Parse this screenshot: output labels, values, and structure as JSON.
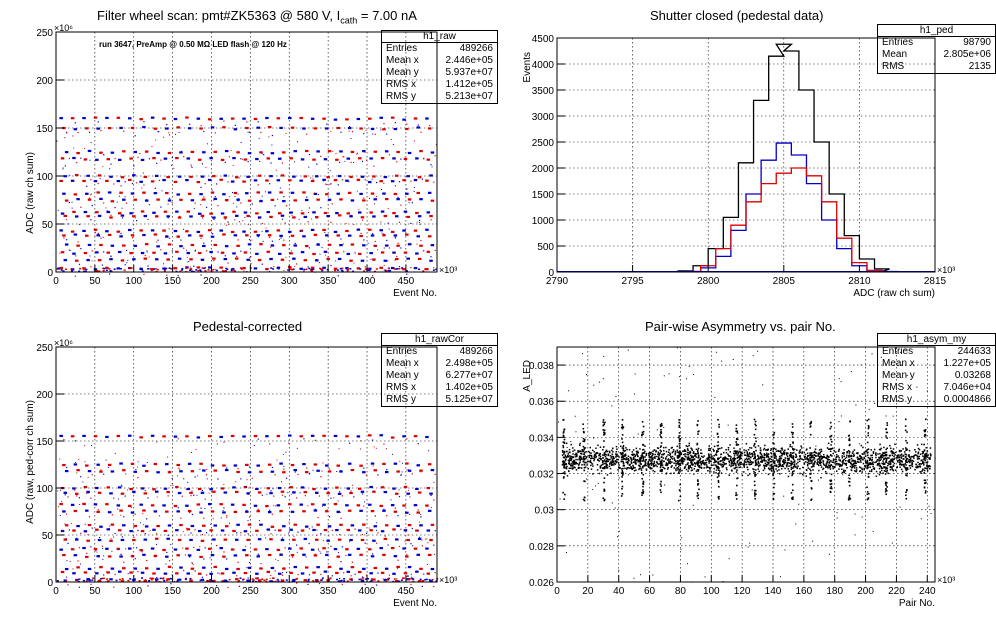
{
  "panels": [
    {
      "title_main": "Filter wheel scan: pmt#ZK5363 @   580 V, I",
      "title_sub": "cath",
      "title_tail": " = 7.00 nA",
      "annotation": "run 3647, PreAmp @ 0.50 MΩ LED flash @  120 Hz",
      "stats": {
        "name": "h1_raw",
        "rows": [
          {
            "label": "Entries",
            "value": "489266"
          },
          {
            "label": "Mean x",
            "value": "2.446e+05"
          },
          {
            "label": "Mean y",
            "value": "5.937e+07"
          },
          {
            "label": "RMS x",
            "value": "1.412e+05"
          },
          {
            "label": "RMS y",
            "value": "5.213e+07"
          }
        ]
      }
    },
    {
      "title": "Shutter closed (pedestal data)",
      "stats": {
        "name": "h1_ped",
        "rows": [
          {
            "label": "Entries",
            "value": "98790"
          },
          {
            "label": "Mean",
            "value": "2.805e+06"
          },
          {
            "label": "RMS",
            "value": "2135"
          }
        ]
      }
    },
    {
      "title": "Pedestal-corrected",
      "stats": {
        "name": "h1_rawCor",
        "rows": [
          {
            "label": "Entries",
            "value": "489266"
          },
          {
            "label": "Mean x",
            "value": "2.498e+05"
          },
          {
            "label": "Mean y",
            "value": "6.277e+07"
          },
          {
            "label": "RMS x",
            "value": "1.402e+05"
          },
          {
            "label": "RMS y",
            "value": "5.125e+07"
          }
        ]
      }
    },
    {
      "title": "Pair-wise Asymmetry vs. pair No.",
      "stats": {
        "name": "h1_asym_my",
        "rows": [
          {
            "label": "Entries",
            "value": "244633"
          },
          {
            "label": "Mean x",
            "value": "1.227e+05"
          },
          {
            "label": "Mean y",
            "value": "0.03268"
          },
          {
            "label": "RMS x",
            "value": "7.046e+04"
          },
          {
            "label": "RMS y",
            "value": "0.0004866"
          }
        ]
      }
    }
  ],
  "chart_data": [
    {
      "type": "scatter",
      "title": "Filter wheel scan: pmt#ZK5363 @ 580 V, I_cath = 7.00 nA",
      "xlabel": "Event No.",
      "ylabel": "ADC (raw ch sum)",
      "x_exponent": "×10³",
      "y_exponent": "×10⁶",
      "xlim": [
        0,
        490
      ],
      "ylim": [
        0,
        250
      ],
      "xticks": [
        0,
        50,
        100,
        150,
        200,
        250,
        300,
        350,
        400,
        450
      ],
      "yticks": [
        0,
        50,
        100,
        150,
        200,
        250
      ],
      "grid": true,
      "series_colors": [
        "#0000cc",
        "#dd0000"
      ],
      "levels": [
        160,
        150,
        125,
        118,
        100,
        95,
        82,
        75,
        62,
        58,
        43,
        38,
        28,
        20,
        13,
        4
      ]
    },
    {
      "type": "line",
      "title": "Shutter closed (pedestal data)",
      "xlabel": "ADC (raw ch sum)",
      "ylabel": "Events",
      "x_exponent": "×10³",
      "xlim": [
        2790,
        2815
      ],
      "ylim": [
        0,
        4500
      ],
      "xticks": [
        2790,
        2795,
        2800,
        2805,
        2810,
        2815
      ],
      "yticks": [
        0,
        500,
        1000,
        1500,
        2000,
        2500,
        3000,
        3500,
        4000,
        4500
      ],
      "grid": true,
      "series": [
        {
          "color": "#000000",
          "x": [
            2798.5,
            2799.5,
            2800.5,
            2801.5,
            2802.5,
            2803.5,
            2804.5,
            2805.0,
            2805.5,
            2806.5,
            2807.5,
            2808.5,
            2809.5,
            2810.5,
            2811.5,
            2812.0
          ],
          "values": [
            20,
            120,
            450,
            1050,
            2100,
            3300,
            4150,
            4380,
            4250,
            3500,
            2500,
            1500,
            700,
            250,
            60,
            10
          ]
        },
        {
          "color": "#0000cc",
          "x": [
            2799.0,
            2800.0,
            2801.0,
            2802.0,
            2803.0,
            2804.0,
            2805.0,
            2806.0,
            2807.0,
            2808.0,
            2809.0,
            2810.0,
            2811.0
          ],
          "values": [
            10,
            80,
            300,
            800,
            1500,
            2150,
            2480,
            2250,
            1700,
            1000,
            450,
            120,
            20
          ]
        },
        {
          "color": "#dd0000",
          "x": [
            2799.0,
            2800.0,
            2801.0,
            2802.0,
            2803.0,
            2804.0,
            2805.0,
            2806.0,
            2807.0,
            2808.0,
            2809.0,
            2810.0,
            2811.0
          ],
          "values": [
            10,
            120,
            450,
            900,
            1350,
            1700,
            1900,
            2000,
            1850,
            1350,
            650,
            180,
            30
          ]
        }
      ]
    },
    {
      "type": "scatter",
      "title": "Pedestal-corrected",
      "xlabel": "Event No.",
      "ylabel": "ADC (raw, ped-corr ch sum)",
      "x_exponent": "×10³",
      "y_exponent": "×10⁶",
      "xlim": [
        0,
        490
      ],
      "ylim": [
        0,
        250
      ],
      "xticks": [
        0,
        50,
        100,
        150,
        200,
        250,
        300,
        350,
        400,
        450
      ],
      "yticks": [
        0,
        50,
        100,
        150,
        200,
        250
      ],
      "grid": true,
      "series_colors": [
        "#0000cc",
        "#dd0000"
      ],
      "levels": [
        155,
        125,
        118,
        100,
        95,
        82,
        75,
        60,
        55,
        45,
        35,
        28,
        15,
        10,
        2
      ]
    },
    {
      "type": "scatter",
      "title": "Pair-wise Asymmetry vs. pair No.",
      "xlabel": "Pair No.",
      "ylabel": "A_LED",
      "x_exponent": "×10³",
      "xlim": [
        0,
        245
      ],
      "ylim": [
        0.026,
        0.039
      ],
      "xticks": [
        0,
        20,
        40,
        60,
        80,
        100,
        120,
        140,
        160,
        180,
        200,
        220,
        240
      ],
      "yticks": [
        0.026,
        0.028,
        0.03,
        0.032,
        0.034,
        0.036,
        0.038
      ],
      "grid": true,
      "band_center": 0.0328,
      "band_halfwidth": 0.0005,
      "spike_x": [
        4,
        17,
        30,
        42,
        55,
        67,
        79,
        91,
        104,
        116,
        128,
        140,
        152,
        164,
        177,
        189,
        201,
        213,
        226,
        238
      ]
    }
  ]
}
